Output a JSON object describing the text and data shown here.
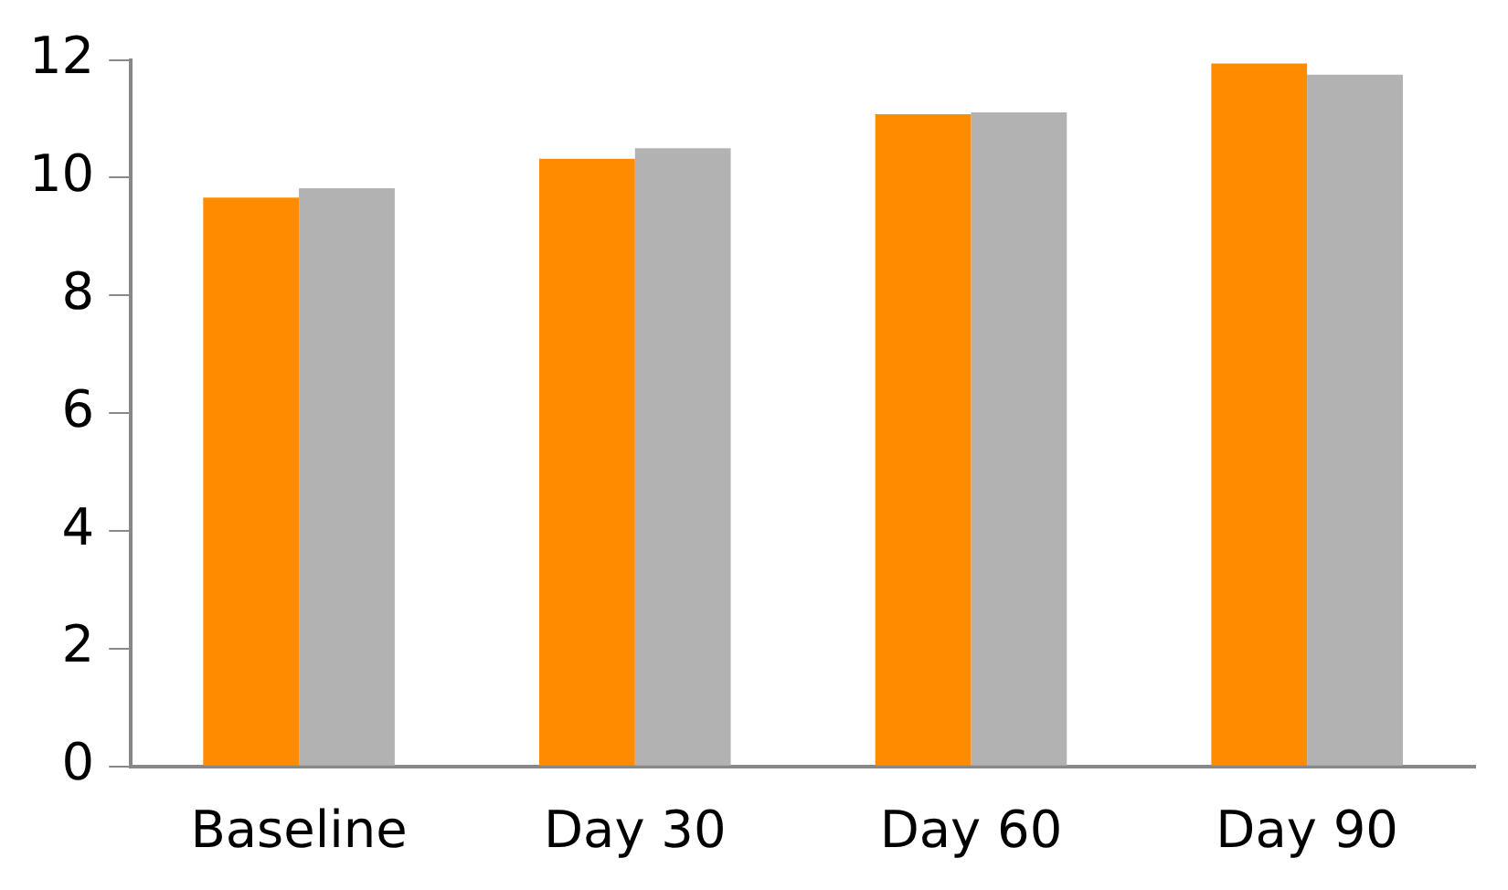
{
  "chart_data": {
    "type": "bar",
    "categories": [
      "Baseline",
      "Day 30",
      "Day 60",
      "Day 90"
    ],
    "series": [
      {
        "color": "#ff8c00",
        "values": [
          9.66,
          10.32,
          11.08,
          11.94
        ]
      },
      {
        "color": "#b2b2b2",
        "values": [
          9.82,
          10.5,
          11.11,
          11.75
        ]
      }
    ],
    "ylim": [
      0,
      12
    ],
    "yticks": [
      0,
      2,
      4,
      6,
      8,
      10,
      12
    ],
    "grid": false,
    "legend": false
  }
}
